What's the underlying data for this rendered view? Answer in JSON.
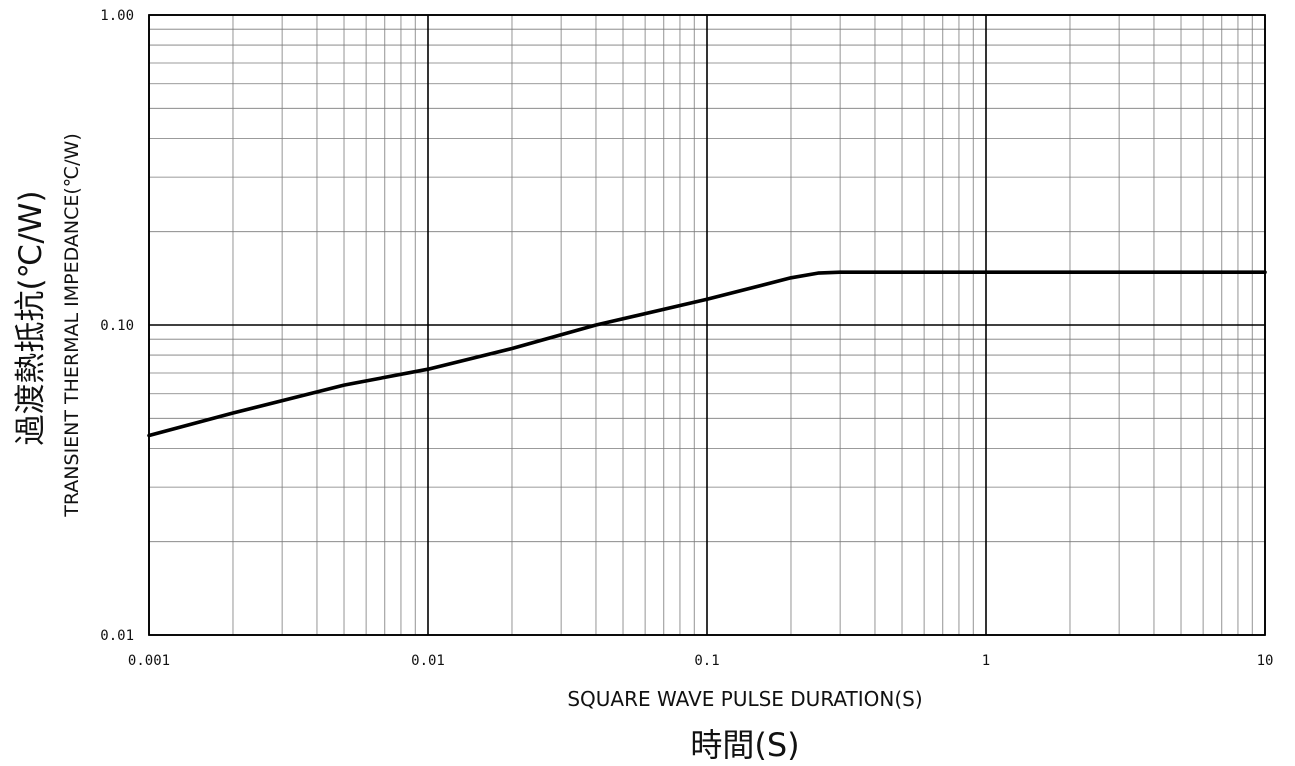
{
  "chart_data": {
    "type": "line",
    "x_scale": "log",
    "y_scale": "log",
    "xlim": [
      0.001,
      10
    ],
    "ylim": [
      0.01,
      1
    ],
    "x_ticks": [
      "0.001",
      "0.01",
      "0.1",
      "1",
      "10"
    ],
    "y_ticks": [
      "0.01",
      "0.10",
      "1.00"
    ],
    "xlabel": "SQUARE WAVE PULSE DURATION(S)",
    "xlabel_jp": "時間(S)",
    "ylabel": "TRANSIENT THERMAL IMPEDANCE(℃/W)",
    "ylabel_jp": "過渡熱抵抗(℃/W)",
    "grid": true,
    "series": [
      {
        "x": [
          0.001,
          0.002,
          0.005,
          0.01,
          0.02,
          0.04,
          0.1,
          0.2,
          0.25,
          0.3,
          0.5,
          1,
          2,
          5,
          10
        ],
        "y": [
          0.044,
          0.052,
          0.064,
          0.072,
          0.084,
          0.1,
          0.121,
          0.142,
          0.147,
          0.148,
          0.148,
          0.148,
          0.148,
          0.148,
          0.148
        ]
      }
    ]
  }
}
